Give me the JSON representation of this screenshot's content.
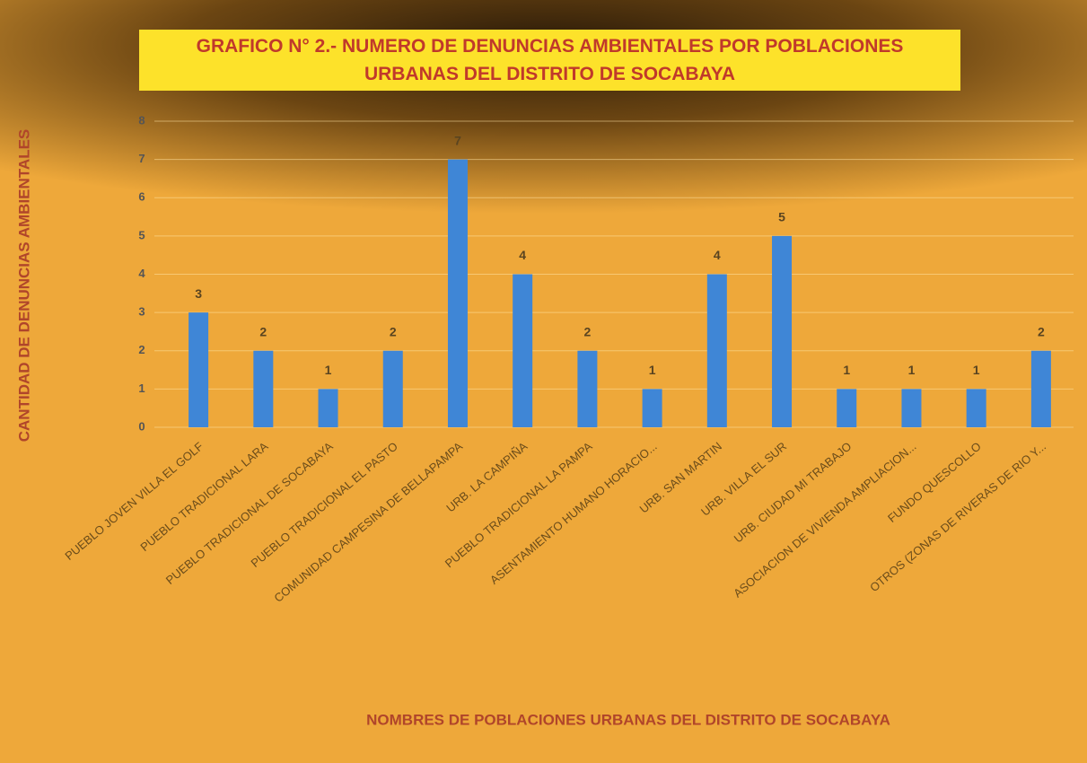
{
  "chart_data": {
    "type": "bar",
    "title": "GRAFICO N° 2.- NUMERO DE DENUNCIAS AMBIENTALES POR POBLACIONES URBANAS DEL DISTRITO DE SOCABAYA",
    "x_label": "NOMBRES DE POBLACIONES URBANAS DEL DISTRITO DE SOCABAYA",
    "y_label": "CANTIDAD DE DENUNCIAS AMBIENTALES",
    "categories": [
      "PUEBLO JOVEN VILLA EL GOLF",
      "PUEBLO TRADICIONAL LARA",
      "PUEBLO TRADICIONAL DE SOCABAYA",
      "PUEBLO TRADICIONAL EL PASTO",
      "COMUNIDAD CAMPESINA DE BELLAPAMPA",
      "URB. LA CAMPIÑA",
      "PUEBLO TRADICIONAL LA PAMPA",
      "ASENTAMIENTO HUMANO HORACIO...",
      "URB. SAN MARTIN",
      "URB. VILLA EL SUR",
      "URB. CIUDAD MI TRABAJO",
      "ASOCIACION DE VIVIENDA AMPLIACION...",
      "FUNDO QUESCOLLO",
      "OTROS (ZONAS DE RIVERAS DE RIO Y..."
    ],
    "values": [
      3,
      2,
      1,
      2,
      7,
      4,
      2,
      1,
      4,
      5,
      1,
      1,
      1,
      2
    ],
    "color": "#3f86d6",
    "ylim": [
      0,
      8
    ],
    "yticks": [
      0,
      1,
      2,
      3,
      4,
      5,
      6,
      7,
      8
    ],
    "grid": true
  }
}
